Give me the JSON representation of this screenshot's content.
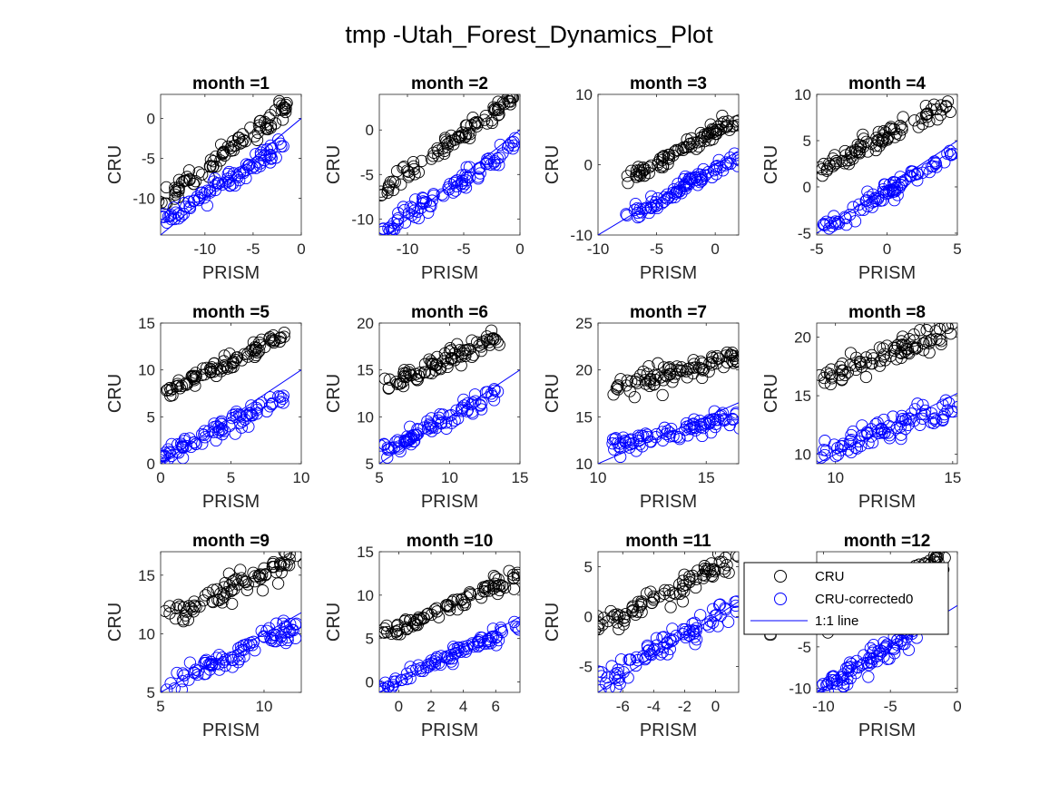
{
  "figure_title": "tmp -Utah_Forest_Dynamics_Plot",
  "legend": {
    "location": "northeast of month =12 panel",
    "entries": [
      {
        "label": "CRU",
        "marker": "circle",
        "color": "#000000"
      },
      {
        "label": "CRU-corrected0",
        "marker": "circle",
        "color": "#0000ff"
      },
      {
        "label": "1:1 line",
        "marker": "line",
        "color": "#0000ff"
      }
    ]
  },
  "colors": {
    "cru": "#000000",
    "corrected": "#0000ff",
    "line": "#0000ff"
  },
  "chart_data": [
    {
      "type": "scatter",
      "title": "month =1",
      "xlabel": "PRISM",
      "ylabel": "CRU",
      "xlim": [
        -14.6,
        0
      ],
      "ylim": [
        -14.6,
        3
      ],
      "xticks": [
        -10,
        -5,
        0
      ],
      "yticks": [
        -10,
        -5,
        0
      ],
      "cru_line": {
        "x": [
          -14.5,
          -1.5
        ],
        "y": [
          -10.5,
          1.5
        ]
      },
      "cru_spread": 1.0,
      "corr_line": {
        "x": [
          -14.5,
          -2
        ],
        "y": [
          -13,
          -3.5
        ]
      },
      "corr_spread": 1.1,
      "n": 90,
      "seed": 1
    },
    {
      "type": "scatter",
      "title": "month =2",
      "xlabel": "PRISM",
      "ylabel": "CRU",
      "xlim": [
        -12.5,
        0
      ],
      "ylim": [
        -11.8,
        4
      ],
      "xticks": [
        -10,
        -5,
        0
      ],
      "yticks": [
        -10,
        -5,
        0
      ],
      "cru_line": {
        "x": [
          -12.2,
          -0.5
        ],
        "y": [
          -7,
          3.5
        ]
      },
      "cru_spread": 1.0,
      "corr_line": {
        "x": [
          -12.2,
          -0.5
        ],
        "y": [
          -11.5,
          -2
        ]
      },
      "corr_spread": 1.0,
      "n": 90,
      "seed": 2
    },
    {
      "type": "scatter",
      "title": "month =3",
      "xlabel": "PRISM",
      "ylabel": "CRU",
      "xlim": [
        -10,
        2
      ],
      "ylim": [
        -10,
        10
      ],
      "xticks": [
        -10,
        -5,
        0
      ],
      "yticks": [
        -10,
        0,
        10
      ],
      "cru_line": {
        "x": [
          -7.5,
          1.8
        ],
        "y": [
          -2,
          6.5
        ]
      },
      "cru_spread": 0.9,
      "corr_line": {
        "x": [
          -7.5,
          1.8
        ],
        "y": [
          -7.5,
          1
        ]
      },
      "corr_spread": 0.8,
      "n": 90,
      "seed": 3
    },
    {
      "type": "scatter",
      "title": "month =4",
      "xlabel": "PRISM",
      "ylabel": "CRU",
      "xlim": [
        -5,
        5
      ],
      "ylim": [
        -5.2,
        10
      ],
      "xticks": [
        -5,
        0,
        5
      ],
      "yticks": [
        -5,
        0,
        5,
        10
      ],
      "cru_line": {
        "x": [
          -4.5,
          4.5
        ],
        "y": [
          2,
          9
        ]
      },
      "cru_spread": 0.8,
      "corr_line": {
        "x": [
          -4.5,
          4.5
        ],
        "y": [
          -4.5,
          3.5
        ]
      },
      "corr_spread": 0.8,
      "n": 90,
      "seed": 4
    },
    {
      "type": "scatter",
      "title": "month =5",
      "xlabel": "PRISM",
      "ylabel": "CRU",
      "xlim": [
        0,
        10
      ],
      "ylim": [
        0,
        15
      ],
      "xticks": [
        0,
        5,
        10
      ],
      "yticks": [
        0,
        5,
        10,
        15
      ],
      "cru_line": {
        "x": [
          0.3,
          8.5
        ],
        "y": [
          7.5,
          13.5
        ]
      },
      "cru_spread": 0.8,
      "corr_line": {
        "x": [
          0.3,
          8.5
        ],
        "y": [
          0.8,
          7
        ]
      },
      "corr_spread": 0.7,
      "n": 90,
      "seed": 5
    },
    {
      "type": "scatter",
      "title": "month =6",
      "xlabel": "PRISM",
      "ylabel": "CRU",
      "xlim": [
        5,
        15
      ],
      "ylim": [
        5,
        20
      ],
      "xticks": [
        5,
        10,
        15
      ],
      "yticks": [
        5,
        10,
        15,
        20
      ],
      "cru_line": {
        "x": [
          5.5,
          13.5
        ],
        "y": [
          13.3,
          18.5
        ]
      },
      "cru_spread": 0.8,
      "corr_line": {
        "x": [
          5.5,
          13.5
        ],
        "y": [
          6.5,
          12.8
        ]
      },
      "corr_spread": 0.8,
      "n": 90,
      "seed": 6
    },
    {
      "type": "scatter",
      "title": "month =7",
      "xlabel": "PRISM",
      "ylabel": "CRU",
      "xlim": [
        10,
        16.5
      ],
      "ylim": [
        10,
        25
      ],
      "xticks": [
        10,
        15
      ],
      "yticks": [
        10,
        15,
        20,
        25
      ],
      "cru_line": {
        "x": [
          10.8,
          16.3
        ],
        "y": [
          18,
          21.5
        ]
      },
      "cru_spread": 0.9,
      "corr_line": {
        "x": [
          10.8,
          16.3
        ],
        "y": [
          12,
          15
        ]
      },
      "corr_spread": 0.8,
      "n": 90,
      "seed": 7
    },
    {
      "type": "scatter",
      "title": "month =8",
      "xlabel": "PRISM",
      "ylabel": "CRU",
      "xlim": [
        9.2,
        15.2
      ],
      "ylim": [
        9.2,
        21.2
      ],
      "xticks": [
        10,
        15
      ],
      "yticks": [
        10,
        15,
        20
      ],
      "cru_line": {
        "x": [
          9.5,
          15
        ],
        "y": [
          16.5,
          20.5
        ]
      },
      "cru_spread": 0.9,
      "corr_line": {
        "x": [
          9.5,
          15
        ],
        "y": [
          10.5,
          14
        ]
      },
      "corr_spread": 0.8,
      "n": 90,
      "seed": 8
    },
    {
      "type": "scatter",
      "title": "month =9",
      "xlabel": "PRISM",
      "ylabel": "CRU",
      "xlim": [
        5,
        11.8
      ],
      "ylim": [
        5,
        17
      ],
      "xticks": [
        5,
        10
      ],
      "yticks": [
        5,
        10,
        15
      ],
      "cru_line": {
        "x": [
          5.5,
          11.7
        ],
        "y": [
          11.5,
          16.5
        ]
      },
      "cru_spread": 0.8,
      "corr_line": {
        "x": [
          5.5,
          11.7
        ],
        "y": [
          5.5,
          10.8
        ]
      },
      "corr_spread": 0.8,
      "n": 90,
      "seed": 9
    },
    {
      "type": "scatter",
      "title": "month =10",
      "xlabel": "PRISM",
      "ylabel": "CRU",
      "xlim": [
        -1.2,
        7.5
      ],
      "ylim": [
        -1.2,
        15
      ],
      "xticks": [
        0,
        2,
        4,
        6
      ],
      "yticks": [
        0,
        5,
        10,
        15
      ],
      "cru_line": {
        "x": [
          -1,
          7.3
        ],
        "y": [
          5.5,
          12
        ]
      },
      "cru_spread": 0.8,
      "corr_line": {
        "x": [
          -1,
          7.3
        ],
        "y": [
          -0.5,
          6.5
        ]
      },
      "corr_spread": 0.7,
      "n": 90,
      "seed": 10
    },
    {
      "type": "scatter",
      "title": "month =11",
      "xlabel": "PRISM",
      "ylabel": "CRU",
      "xlim": [
        -7.6,
        1.5
      ],
      "ylim": [
        -7.6,
        6.5
      ],
      "xticks": [
        -6,
        -4,
        -2,
        0
      ],
      "yticks": [
        -5,
        0,
        5
      ],
      "cru_line": {
        "x": [
          -7.5,
          1.2
        ],
        "y": [
          -1,
          5.5
        ]
      },
      "cru_spread": 1.0,
      "corr_line": {
        "x": [
          -7.5,
          1.2
        ],
        "y": [
          -6.8,
          1
        ]
      },
      "corr_spread": 1.0,
      "n": 90,
      "seed": 11
    },
    {
      "type": "scatter",
      "title": "month =12",
      "xlabel": "PRISM",
      "ylabel": "CRU",
      "xlim": [
        -10.5,
        0
      ],
      "ylim": [
        -10.5,
        6.5
      ],
      "xticks": [
        -10,
        -5,
        0
      ],
      "yticks": [
        -10,
        -5
      ],
      "cru_line": {
        "x": [
          -10,
          -1
        ],
        "y": [
          -3,
          6
        ]
      },
      "cru_spread": 1.2,
      "corr_line": {
        "x": [
          -10,
          -3
        ],
        "y": [
          -10,
          -3
        ]
      },
      "corr_spread": 1.2,
      "n": 90,
      "seed": 12
    }
  ]
}
